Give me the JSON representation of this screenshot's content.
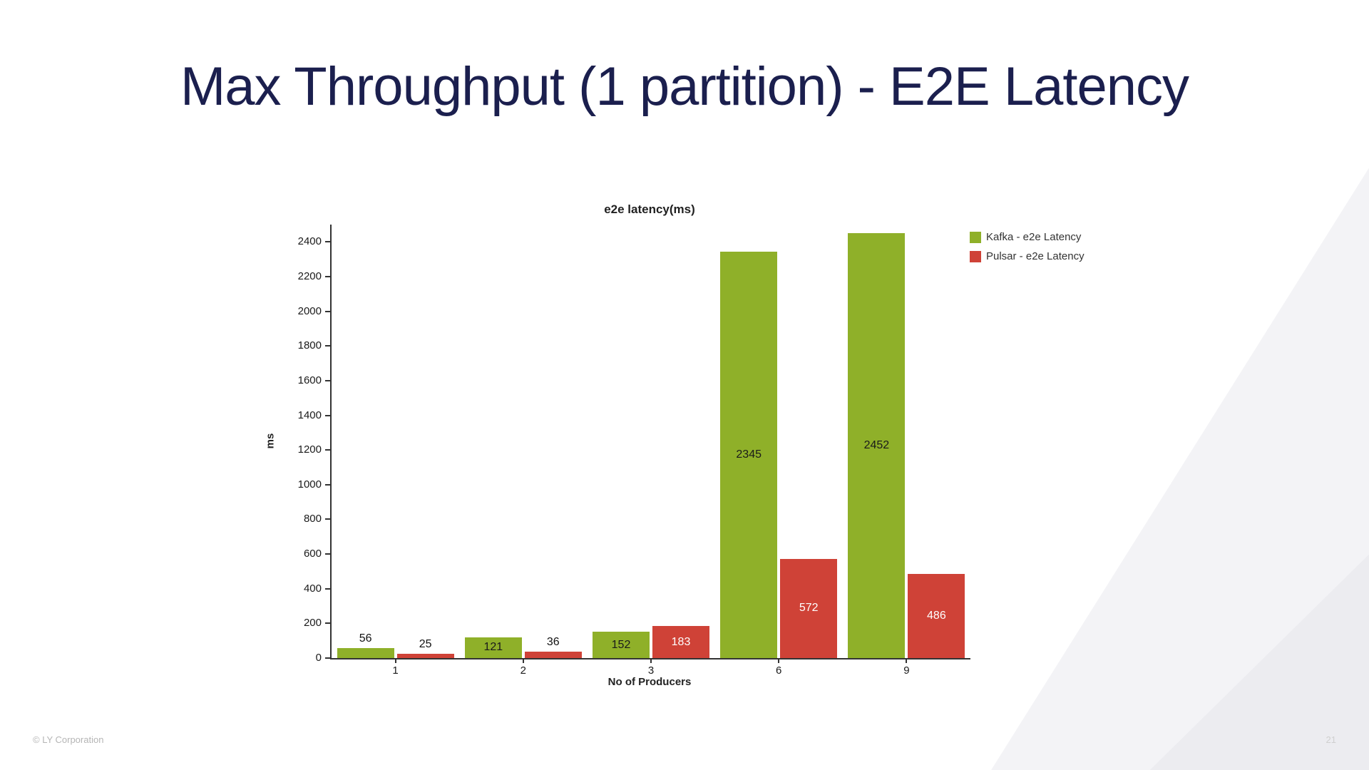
{
  "slide": {
    "title": "Max Throughput (1 partition) - E2E Latency",
    "footer_left": "© LY Corporation",
    "page_number": "21"
  },
  "colors": {
    "title_navy": "#1b1f4e",
    "kafka_green": "#8fb029",
    "pulsar_red": "#cf4237",
    "axis": "#333333",
    "corner_gray": "#f3f3f6"
  },
  "chart_data": {
    "type": "bar",
    "title": "e2e latency(ms)",
    "xlabel": "No of Producers",
    "ylabel": "ms",
    "categories": [
      "1",
      "2",
      "3",
      "6",
      "9"
    ],
    "series": [
      {
        "name": "Kafka - e2e Latency",
        "color": "#8fb029",
        "label_color_inside": "#1a1a1a",
        "values": [
          56,
          121,
          152,
          2345,
          2452
        ]
      },
      {
        "name": "Pulsar - e2e Latency",
        "color": "#cf4237",
        "label_color_inside": "#ffffff",
        "values": [
          25,
          36,
          183,
          572,
          486
        ]
      }
    ],
    "ylim": [
      0,
      2500
    ],
    "yticks": [
      0,
      200,
      400,
      600,
      800,
      1000,
      1200,
      1400,
      1600,
      1800,
      2000,
      2200,
      2400
    ],
    "grid": false,
    "legend_position": "top-right"
  }
}
